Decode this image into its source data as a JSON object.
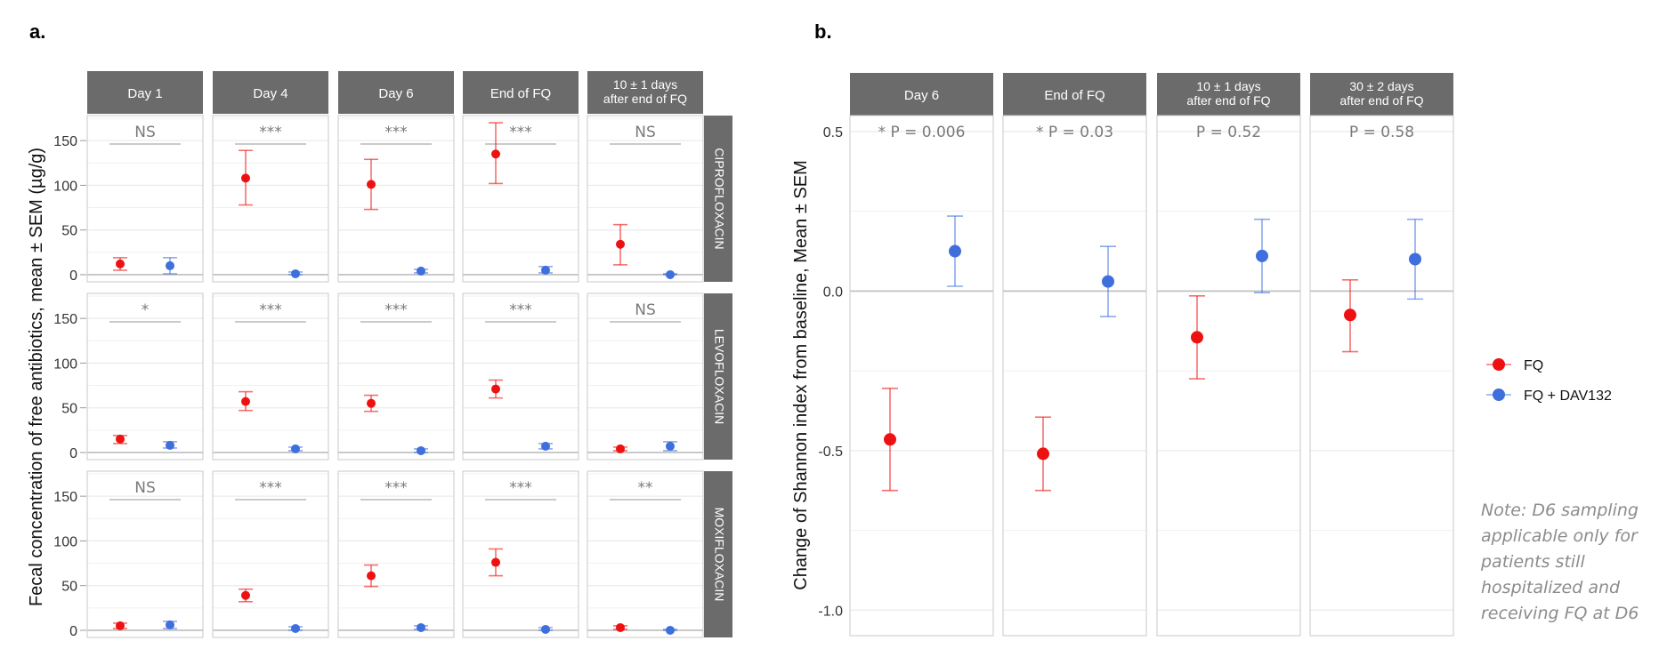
{
  "panel_labels": {
    "a": "a.",
    "b": "b."
  },
  "note": "Note: D6 sampling applicable only for patients still hospitalized and receiving FQ at D6",
  "colors": {
    "fq": "#ee1111",
    "fq_dav132": "#3f6fdd",
    "strip": "#6b6b6b"
  },
  "chart_data": [
    {
      "type": "scatter",
      "panel": "a.",
      "ylabel": "Fecal concentration of free antibiotics, mean ± SEM (µg/g)",
      "ylim": [
        -8,
        178
      ],
      "yticks": [
        "0",
        "50",
        "100",
        "150"
      ],
      "columns": [
        "Day 1",
        "Day 4",
        "Day 6",
        "End of FQ",
        "10 ± 1 days\nafter end of FQ"
      ],
      "rows": [
        "CIPROFLOXACIN",
        "LEVOFLOXACIN",
        "MOXIFLOXACIN"
      ],
      "groups": [
        "FQ",
        "FQ + DAV132"
      ],
      "significance": [
        [
          "NS",
          "***",
          "***",
          "***",
          "NS"
        ],
        [
          "*",
          "***",
          "***",
          "***",
          "NS"
        ],
        [
          "NS",
          "***",
          "***",
          "***",
          "**"
        ]
      ],
      "data": [
        [
          [
            {
              "mean": 12,
              "low": 5,
              "high": 19
            },
            {
              "mean": 10,
              "low": 1,
              "high": 19
            }
          ],
          [
            {
              "mean": 108,
              "low": 78,
              "high": 139
            },
            {
              "mean": 1,
              "low": 0,
              "high": 3
            }
          ],
          [
            {
              "mean": 101,
              "low": 73,
              "high": 129
            },
            {
              "mean": 4,
              "low": 2,
              "high": 6
            }
          ],
          [
            {
              "mean": 135,
              "low": 102,
              "high": 170
            },
            {
              "mean": 5,
              "low": 2,
              "high": 9
            }
          ],
          [
            {
              "mean": 34,
              "low": 11,
              "high": 56
            },
            {
              "mean": 0,
              "low": 0,
              "high": 1
            }
          ]
        ],
        [
          [
            {
              "mean": 15,
              "low": 10,
              "high": 19
            },
            {
              "mean": 8,
              "low": 5,
              "high": 12
            }
          ],
          [
            {
              "mean": 57,
              "low": 47,
              "high": 68
            },
            {
              "mean": 4,
              "low": 2,
              "high": 6
            }
          ],
          [
            {
              "mean": 55,
              "low": 46,
              "high": 64
            },
            {
              "mean": 2,
              "low": 0,
              "high": 4
            }
          ],
          [
            {
              "mean": 71,
              "low": 61,
              "high": 81
            },
            {
              "mean": 7,
              "low": 4,
              "high": 10
            }
          ],
          [
            {
              "mean": 4,
              "low": 2,
              "high": 6
            },
            {
              "mean": 7,
              "low": 2,
              "high": 12
            }
          ]
        ],
        [
          [
            {
              "mean": 5,
              "low": 2,
              "high": 8
            },
            {
              "mean": 6,
              "low": 2,
              "high": 10
            }
          ],
          [
            {
              "mean": 39,
              "low": 32,
              "high": 46
            },
            {
              "mean": 2,
              "low": 0,
              "high": 4
            }
          ],
          [
            {
              "mean": 61,
              "low": 49,
              "high": 73
            },
            {
              "mean": 3,
              "low": 1,
              "high": 5
            }
          ],
          [
            {
              "mean": 76,
              "low": 61,
              "high": 91
            },
            {
              "mean": 1,
              "low": 0,
              "high": 3
            }
          ],
          [
            {
              "mean": 3,
              "low": 1,
              "high": 5
            },
            {
              "mean": 0,
              "low": 0,
              "high": 1
            }
          ]
        ]
      ]
    },
    {
      "type": "scatter",
      "panel": "b.",
      "ylabel": "Change of Shannon index from baseline, Mean ± SEM",
      "ylim": [
        -1.08,
        0.55
      ],
      "yticks": [
        "-1.0",
        "-0.5",
        "0.0",
        "0.5"
      ],
      "columns": [
        "Day 6",
        "End of FQ",
        "10 ± 1 days\nafter end of FQ",
        "30 ± 2 days\nafter end of FQ"
      ],
      "pvalues": [
        "* P = 0.006",
        "* P = 0.03",
        "P = 0.52",
        "P = 0.58"
      ],
      "series": [
        {
          "name": "FQ",
          "values": [
            {
              "mean": -0.465,
              "low": -0.625,
              "high": -0.305
            },
            {
              "mean": -0.51,
              "low": -0.625,
              "high": -0.395
            },
            {
              "mean": -0.145,
              "low": -0.275,
              "high": -0.015
            },
            {
              "mean": -0.075,
              "low": -0.19,
              "high": 0.035
            }
          ]
        },
        {
          "name": "FQ + DAV132",
          "values": [
            {
              "mean": 0.125,
              "low": 0.015,
              "high": 0.235
            },
            {
              "mean": 0.03,
              "low": -0.08,
              "high": 0.14
            },
            {
              "mean": 0.11,
              "low": -0.005,
              "high": 0.225
            },
            {
              "mean": 0.1,
              "low": -0.025,
              "high": 0.225
            }
          ]
        }
      ],
      "legend": [
        "FQ",
        "FQ + DAV132"
      ]
    }
  ]
}
